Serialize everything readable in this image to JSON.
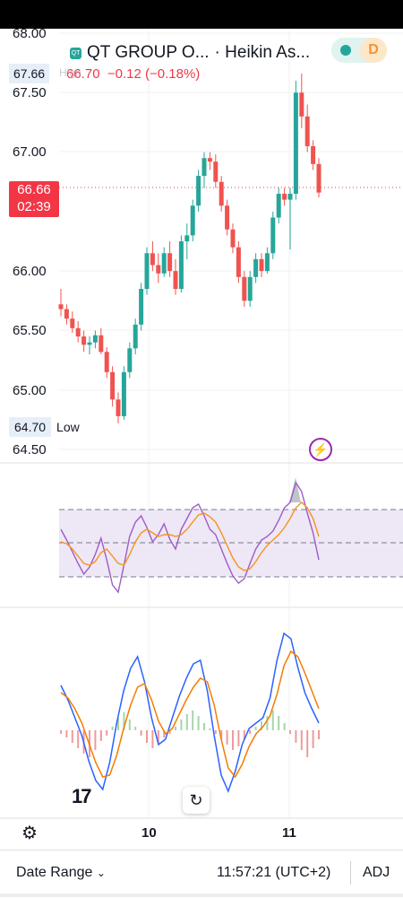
{
  "header": {
    "symbol_badge": "QT",
    "title": "QT GROUP O...",
    "chart_type": "· Heikin As...",
    "quote_price": "66.70",
    "quote_change": "−0.12 (−0.18%)",
    "high_label": "High",
    "session_badge": "D"
  },
  "price_axis": {
    "ticks": [
      "68.00",
      "67.50",
      "67.00",
      "66.00",
      "65.50",
      "65.00",
      "64.50"
    ]
  },
  "tags": {
    "high_value": "67.66",
    "current_price": "66.66",
    "countdown": "02:39",
    "low_value": "64.70",
    "low_label": "Low"
  },
  "time_axis": {
    "ticks": [
      "10",
      "11"
    ]
  },
  "bottom_bar": {
    "date_range": "Date Range",
    "clock": "11:57:21 (UTC+2)",
    "adj": "ADJ"
  },
  "colors": {
    "up": "#26a69a",
    "down": "#ef5350",
    "price_line": "#f23645",
    "rsi": "#9c5cc7",
    "rsi_ma": "#f7931a",
    "macd": "#2962ff",
    "signal": "#f57c00",
    "rsi_band": "#ede7f6"
  },
  "icons": [
    "chevron-down-icon",
    "reset-icon",
    "settings-icon",
    "lightning-icon",
    "market-status-dot-icon",
    "tradingview-logo-icon"
  ],
  "chart_data": {
    "type": "candlestick",
    "title": "QT GROUP O...",
    "ylim": [
      64.45,
      68.05
    ],
    "x_ticks": [
      "10",
      "11"
    ],
    "ohlc_approx": [
      [
        65.72,
        65.85,
        65.62,
        65.68
      ],
      [
        65.68,
        65.72,
        65.55,
        65.6
      ],
      [
        65.6,
        65.66,
        65.48,
        65.52
      ],
      [
        65.52,
        65.58,
        65.4,
        65.45
      ],
      [
        65.45,
        65.5,
        65.32,
        65.38
      ],
      [
        65.38,
        65.45,
        65.3,
        65.4
      ],
      [
        65.4,
        65.5,
        65.35,
        65.46
      ],
      [
        65.46,
        65.52,
        65.3,
        65.32
      ],
      [
        65.32,
        65.36,
        65.1,
        65.15
      ],
      [
        65.15,
        65.2,
        64.86,
        64.92
      ],
      [
        64.92,
        64.98,
        64.72,
        64.78
      ],
      [
        64.78,
        65.2,
        64.75,
        65.15
      ],
      [
        65.15,
        65.4,
        65.1,
        65.35
      ],
      [
        65.35,
        65.6,
        65.3,
        65.55
      ],
      [
        65.55,
        65.9,
        65.5,
        65.85
      ],
      [
        65.85,
        66.2,
        65.8,
        66.15
      ],
      [
        66.15,
        66.25,
        66.0,
        66.05
      ],
      [
        66.05,
        66.15,
        65.9,
        65.98
      ],
      [
        65.98,
        66.2,
        65.95,
        66.15
      ],
      [
        66.15,
        66.25,
        65.95,
        66.0
      ],
      [
        66.0,
        66.1,
        65.8,
        65.85
      ],
      [
        65.85,
        66.3,
        65.82,
        66.25
      ],
      [
        66.25,
        66.4,
        66.1,
        66.3
      ],
      [
        66.3,
        66.6,
        66.25,
        66.55
      ],
      [
        66.55,
        66.85,
        66.5,
        66.8
      ],
      [
        66.8,
        67.0,
        66.7,
        66.95
      ],
      [
        66.95,
        67.0,
        66.85,
        66.92
      ],
      [
        66.92,
        66.98,
        66.7,
        66.75
      ],
      [
        66.75,
        66.8,
        66.5,
        66.55
      ],
      [
        66.55,
        66.6,
        66.3,
        66.35
      ],
      [
        66.35,
        66.4,
        66.15,
        66.2
      ],
      [
        66.2,
        66.25,
        65.9,
        65.95
      ],
      [
        65.95,
        66.0,
        65.7,
        65.75
      ],
      [
        65.75,
        66.0,
        65.7,
        65.95
      ],
      [
        65.95,
        66.15,
        65.9,
        66.1
      ],
      [
        66.1,
        66.15,
        65.95,
        66.0
      ],
      [
        66.0,
        66.2,
        65.98,
        66.15
      ],
      [
        66.15,
        66.5,
        66.1,
        66.45
      ],
      [
        66.45,
        66.7,
        66.4,
        66.65
      ],
      [
        66.65,
        66.7,
        66.55,
        66.6
      ],
      [
        66.6,
        66.7,
        66.18,
        66.65
      ],
      [
        66.65,
        67.6,
        66.6,
        67.5
      ],
      [
        67.5,
        67.66,
        67.2,
        67.3
      ],
      [
        67.3,
        67.4,
        67.0,
        67.05
      ],
      [
        67.05,
        67.1,
        66.85,
        66.9
      ],
      [
        66.9,
        66.95,
        66.62,
        66.66
      ]
    ]
  }
}
